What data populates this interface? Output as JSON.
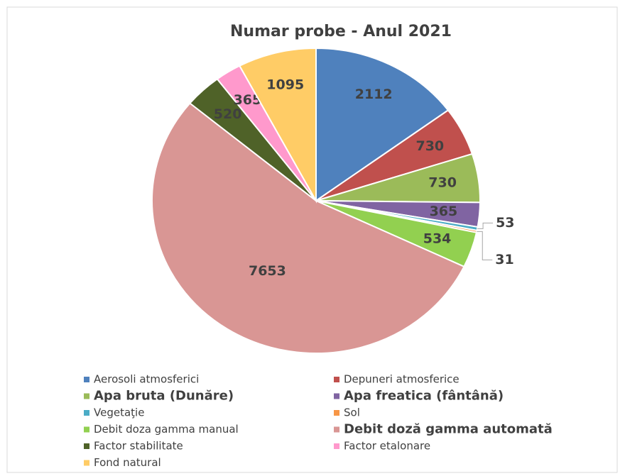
{
  "chart_data": {
    "type": "pie",
    "title": "Numar probe - Anul 2021",
    "categories": [
      "Aerosoli atmosferici",
      "Depuneri atmosferice",
      "Apa bruta (Dunăre)",
      "Apa freatica (fântână)",
      "Vegetaţie",
      "Sol",
      "Debit  doza gamma manual",
      "Debit doză gamma automată",
      "Factor stabilitate",
      "Factor etalonare",
      "Fond natural"
    ],
    "values": [
      2112,
      730,
      730,
      365,
      53,
      31,
      534,
      7653,
      520,
      365,
      1095
    ],
    "colors": [
      "#4f81bd",
      "#c0504d",
      "#9bbb59",
      "#8064a2",
      "#4bacc6",
      "#f79646",
      "#92d050",
      "#d99694",
      "#4f6228",
      "#ff99cc",
      "#ffcc66"
    ],
    "legend": "bottom"
  }
}
